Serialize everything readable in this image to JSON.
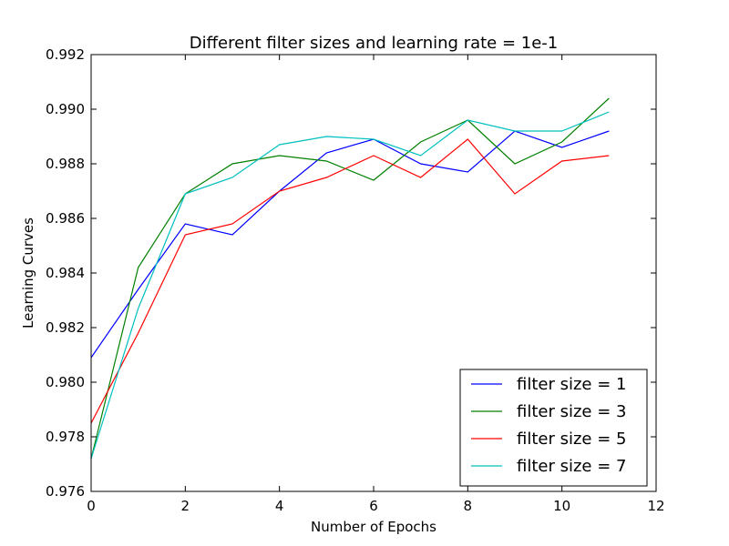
{
  "chart_data": {
    "type": "line",
    "title": "Different filter sizes and learning rate = 1e-1",
    "xlabel": "Number of Epochs",
    "ylabel": "Learning Curves",
    "xlim": [
      0,
      12
    ],
    "ylim": [
      0.976,
      0.992
    ],
    "xticks": [
      {
        "value": 0,
        "label": "0"
      },
      {
        "value": 2,
        "label": "2"
      },
      {
        "value": 4,
        "label": "4"
      },
      {
        "value": 6,
        "label": "6"
      },
      {
        "value": 8,
        "label": "8"
      },
      {
        "value": 10,
        "label": "10"
      },
      {
        "value": 12,
        "label": "12"
      }
    ],
    "yticks": [
      {
        "value": 0.976,
        "label": "0.976"
      },
      {
        "value": 0.978,
        "label": "0.978"
      },
      {
        "value": 0.98,
        "label": "0.980"
      },
      {
        "value": 0.982,
        "label": "0.982"
      },
      {
        "value": 0.984,
        "label": "0.984"
      },
      {
        "value": 0.986,
        "label": "0.986"
      },
      {
        "value": 0.988,
        "label": "0.988"
      },
      {
        "value": 0.99,
        "label": "0.990"
      },
      {
        "value": 0.992,
        "label": "0.992"
      }
    ],
    "grid": false,
    "legend_position": "lower-right",
    "x": [
      0,
      1,
      2,
      3,
      4,
      5,
      6,
      7,
      8,
      9,
      10,
      11
    ],
    "series": [
      {
        "name": "filter size = 1",
        "color": "#0000ff",
        "values": [
          0.9809,
          0.9834,
          0.9858,
          0.9854,
          0.987,
          0.9884,
          0.9889,
          0.988,
          0.9877,
          0.9892,
          0.9886,
          0.9892
        ]
      },
      {
        "name": "filter size = 3",
        "color": "#008000",
        "values": [
          0.9772,
          0.9842,
          0.9869,
          0.988,
          0.9883,
          0.9881,
          0.9874,
          0.9888,
          0.9896,
          0.988,
          0.9888,
          0.9904
        ]
      },
      {
        "name": "filter size = 5",
        "color": "#ff0000",
        "values": [
          0.9785,
          0.9818,
          0.9854,
          0.9858,
          0.987,
          0.9875,
          0.9883,
          0.9875,
          0.9889,
          0.9869,
          0.9881,
          0.9883
        ]
      },
      {
        "name": "filter size = 7",
        "color": "#00bfbf",
        "values": [
          0.9772,
          0.9827,
          0.9869,
          0.9875,
          0.9887,
          0.989,
          0.9889,
          0.9883,
          0.9896,
          0.9892,
          0.9892,
          0.9899
        ]
      }
    ]
  }
}
